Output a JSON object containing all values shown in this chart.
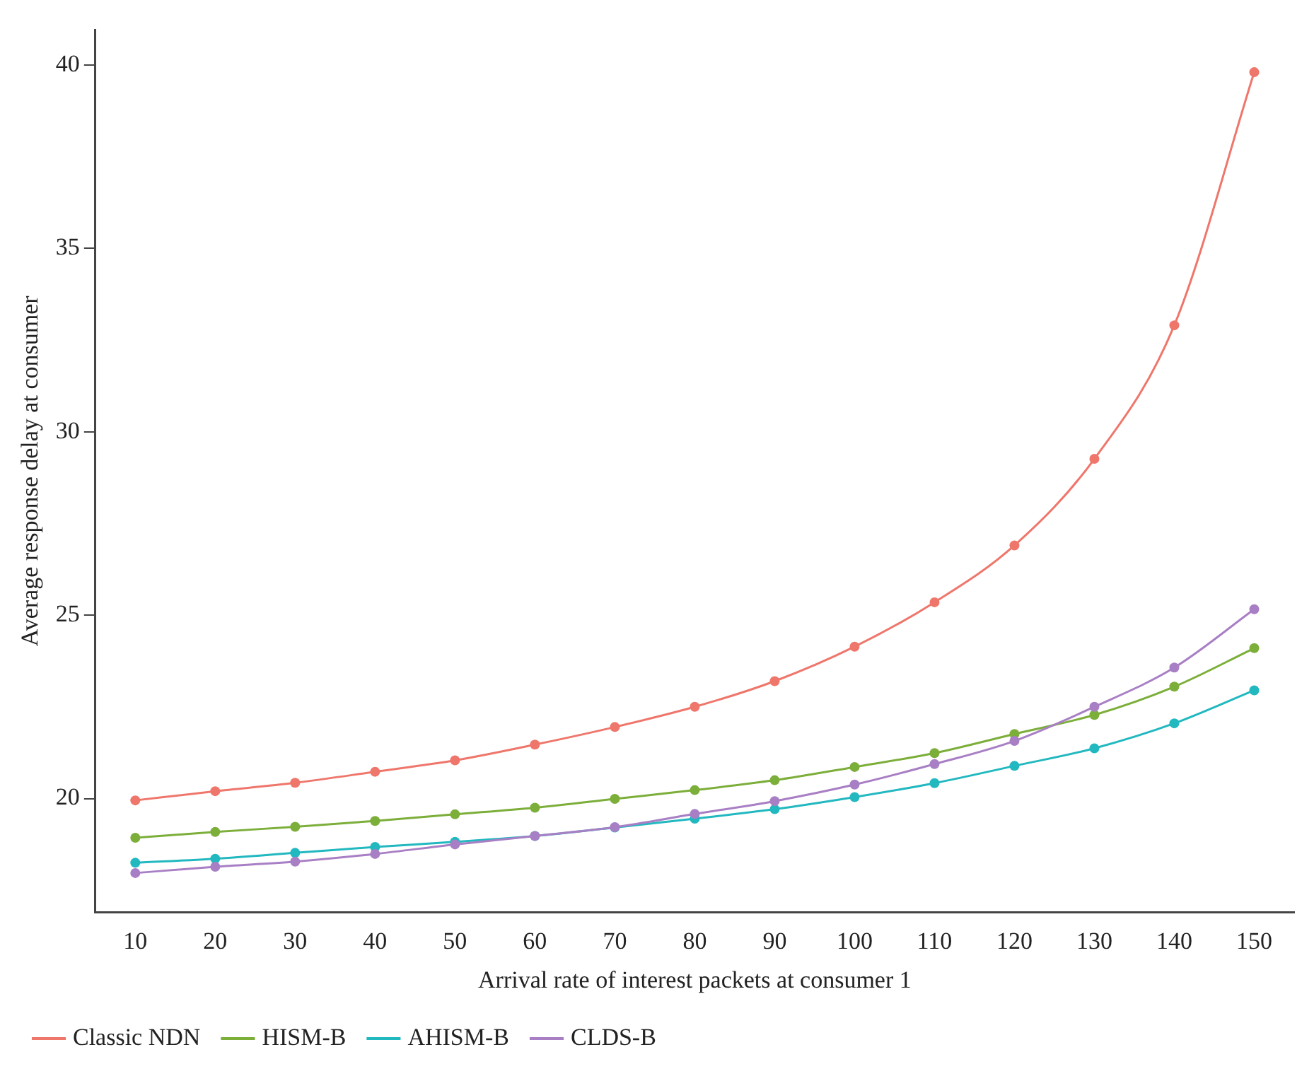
{
  "chart_data": {
    "type": "line",
    "xlabel": "Arrival rate of interest packets at consumer 1",
    "ylabel": "Average response delay at consumer",
    "categories": [
      "10",
      "20",
      "30",
      "40",
      "50",
      "60",
      "70",
      "80",
      "90",
      "100",
      "110",
      "120",
      "130",
      "140",
      "150"
    ],
    "ylim": [
      16.9,
      40.95
    ],
    "yticks": [
      20,
      25,
      30,
      35,
      40
    ],
    "grid": false,
    "legend": "bottom",
    "marker": "circle",
    "series": [
      {
        "name": "Classic NDN",
        "color": "#ef766b",
        "values": [
          19.95,
          20.2,
          20.43,
          20.73,
          21.04,
          21.47,
          21.95,
          22.5,
          23.2,
          24.14,
          25.35,
          26.9,
          29.26,
          32.9,
          39.8
        ]
      },
      {
        "name": "HISM-B",
        "color": "#7cae3a",
        "values": [
          18.93,
          19.09,
          19.23,
          19.39,
          19.57,
          19.75,
          19.99,
          20.23,
          20.5,
          20.86,
          21.24,
          21.76,
          22.28,
          23.05,
          24.1
        ]
      },
      {
        "name": "AHISM-B",
        "color": "#22b8c0",
        "values": [
          18.25,
          18.36,
          18.52,
          18.68,
          18.82,
          18.98,
          19.21,
          19.45,
          19.71,
          20.04,
          20.42,
          20.89,
          21.37,
          22.05,
          22.95
        ]
      },
      {
        "name": "CLDS-B",
        "color": "#a87fc4",
        "values": [
          17.97,
          18.14,
          18.28,
          18.49,
          18.75,
          18.98,
          19.22,
          19.58,
          19.93,
          20.38,
          20.94,
          21.57,
          22.5,
          23.57,
          25.16
        ]
      }
    ]
  }
}
